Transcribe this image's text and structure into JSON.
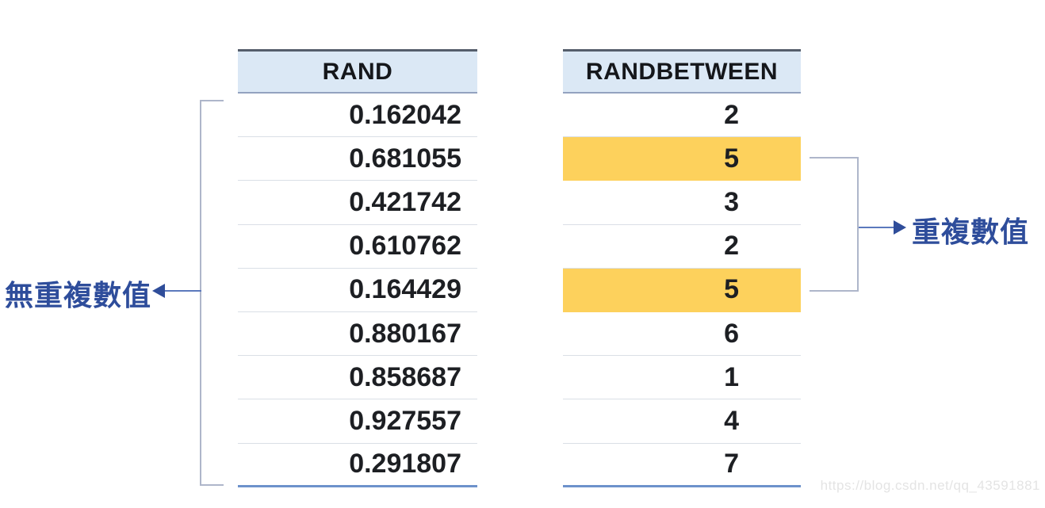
{
  "tables": {
    "rand": {
      "header": "RAND",
      "values": [
        "0.162042",
        "0.681055",
        "0.421742",
        "0.610762",
        "0.164429",
        "0.880167",
        "0.858687",
        "0.927557",
        "0.291807"
      ]
    },
    "randbetween": {
      "header": "RANDBETWEEN",
      "values": [
        "2",
        "5",
        "3",
        "2",
        "5",
        "6",
        "1",
        "4",
        "7"
      ],
      "highlighted_row_indices": [
        1,
        4
      ],
      "highlighted_value": "5"
    }
  },
  "annotations": {
    "no_duplicates_label": "無重複數值",
    "duplicates_label": "重複數值"
  },
  "watermark": "https://blog.csdn.net/qq_43591881",
  "colors": {
    "header_bg": "#DBE8F5",
    "highlight_yellow": "#FDD15C",
    "label_blue": "#2E4D9B",
    "arrow_blue": "#2F4D9A",
    "bracket_gray": "#AEB6CA",
    "table_bottom_border": "#6D92CB"
  },
  "icons": {
    "left_arrowhead": "arrow-left",
    "right_arrowhead": "arrow-right"
  }
}
